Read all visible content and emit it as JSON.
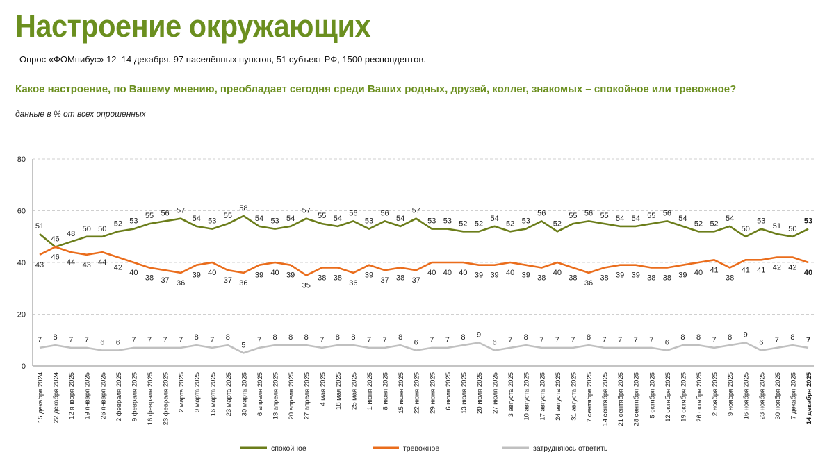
{
  "title": "Настроение окружающих",
  "subtitle": "Опрос «ФОМнибус» 12–14 декабря. 97 населённых пунктов, 51 субъект РФ, 1500 респондентов.",
  "question": "Какое настроение, по Вашему мнению, преобладает сегодня среди Ваших родных, друзей, коллег, знакомых – спокойное или тревожное?",
  "note": "данные в % от всех опрошенных",
  "chart_data": {
    "type": "line",
    "x": [
      "15 декабря 2024",
      "22 декабря 2024",
      "12 января 2025",
      "19 января 2025",
      "26 января 2025",
      "2 февраля 2025",
      "9 февраля 2025",
      "16 февраля 2025",
      "23 февраля 2025",
      "2 марта 2025",
      "9 марта 2025",
      "16 марта 2025",
      "23 марта 2025",
      "30 марта 2025",
      "6 апреля 2025",
      "13 апреля 2025",
      "20 апреля 2025",
      "27 апреля 2025",
      "4 мая 2025",
      "18 мая 2025",
      "25 мая 2025",
      "1 июня 2025",
      "8 июня 2025",
      "15 июня 2025",
      "22 июня 2025",
      "29 июня 2025",
      "6 июля 2025",
      "13 июля 2025",
      "20 июля 2025",
      "27 июля 2025",
      "3 августа 2025",
      "10 августа 2025",
      "17 августа 2025",
      "24 августа 2025",
      "31 августа 2025",
      "7 сентября 2025",
      "14 сентября 2025",
      "21 сентября 2025",
      "28 сентября 2025",
      "5 октября 2025",
      "12 октября 2025",
      "19 октября 2025",
      "26 октября 2025",
      "2 ноября 2025",
      "9 ноября 2025",
      "16 ноября 2025",
      "23 ноября 2025",
      "30 ноября 2025",
      "7 декабря 2025",
      "14 декабря 2025"
    ],
    "ylim": [
      0,
      80
    ],
    "yticks": [
      "0",
      "20",
      "40",
      "60",
      "80"
    ],
    "grid": true,
    "legend_position": "bottom",
    "series": [
      {
        "name": "спокойное",
        "color": "#6b7d1a",
        "values": [
          51,
          46,
          48,
          50,
          50,
          52,
          53,
          55,
          56,
          57,
          54,
          53,
          55,
          58,
          54,
          53,
          54,
          57,
          55,
          54,
          56,
          53,
          56,
          54,
          57,
          53,
          53,
          52,
          52,
          54,
          52,
          53,
          56,
          52,
          55,
          56,
          55,
          54,
          54,
          55,
          56,
          54,
          52,
          52,
          54,
          50,
          53,
          51,
          50,
          53
        ]
      },
      {
        "name": "тревожное",
        "color": "#ea6d1c",
        "values": [
          43,
          46,
          44,
          43,
          44,
          42,
          40,
          38,
          37,
          36,
          39,
          40,
          37,
          36,
          39,
          40,
          39,
          35,
          38,
          38,
          36,
          39,
          37,
          38,
          37,
          40,
          40,
          40,
          39,
          39,
          40,
          39,
          38,
          40,
          38,
          36,
          38,
          39,
          39,
          38,
          38,
          39,
          40,
          41,
          38,
          41,
          41,
          42,
          42,
          40
        ]
      },
      {
        "name": "затрудняюсь ответить",
        "color": "#c0c0c0",
        "values": [
          7,
          8,
          7,
          7,
          6,
          6,
          7,
          7,
          7,
          7,
          8,
          7,
          8,
          5,
          7,
          8,
          8,
          8,
          7,
          8,
          8,
          7,
          7,
          8,
          6,
          7,
          7,
          8,
          9,
          6,
          7,
          8,
          7,
          7,
          7,
          8,
          7,
          7,
          7,
          7,
          6,
          8,
          8,
          7,
          8,
          9,
          6,
          7,
          8,
          7
        ]
      }
    ]
  }
}
